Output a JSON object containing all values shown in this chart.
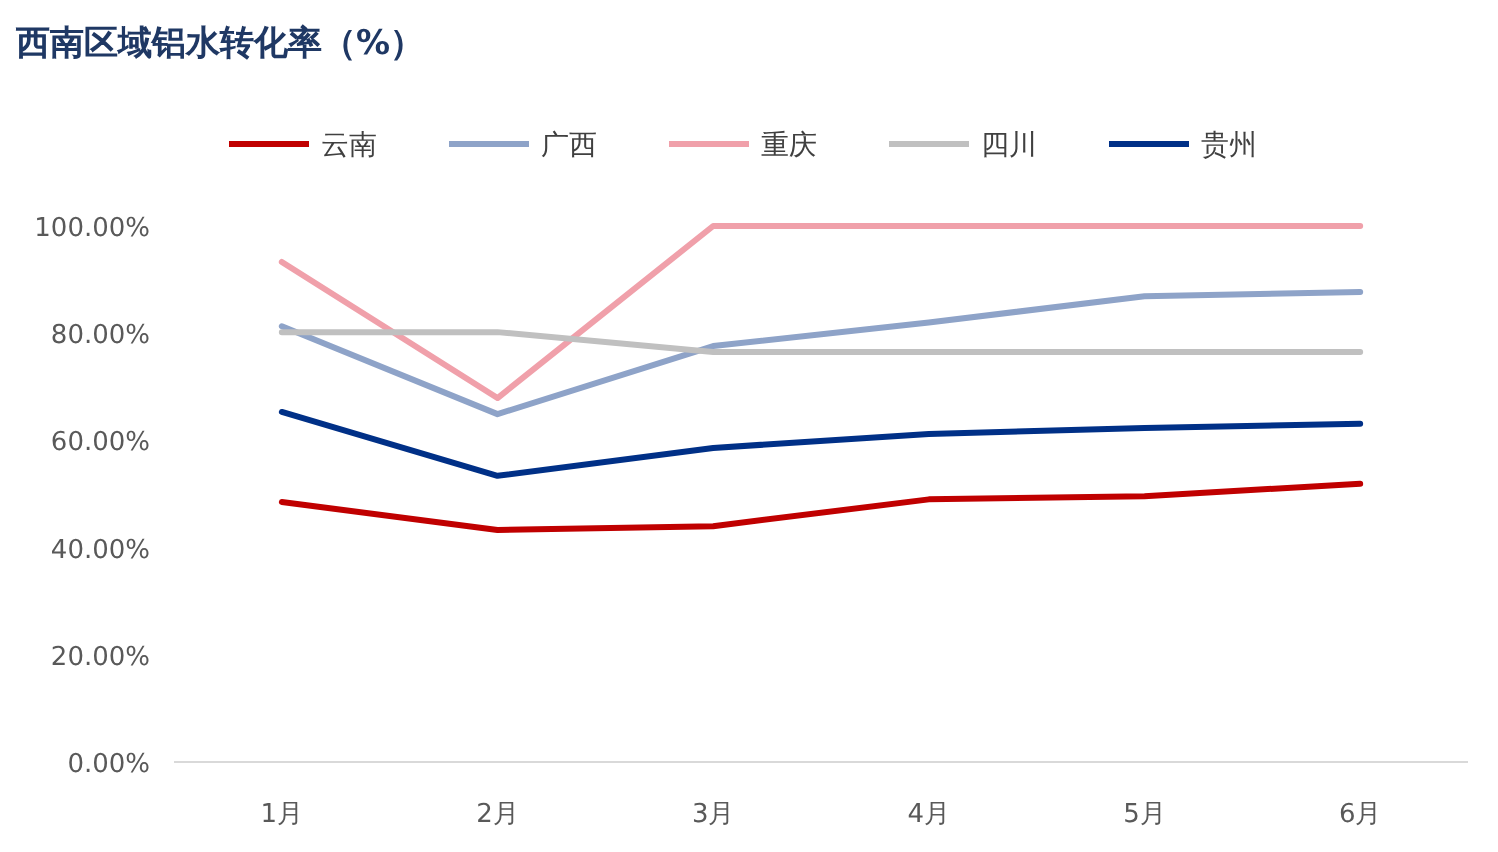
{
  "chart_data": {
    "type": "line",
    "title": "西南区域铝水转化率（%）",
    "categories": [
      "1月",
      "2月",
      "3月",
      "4月",
      "5月",
      "6月"
    ],
    "series": [
      {
        "name": "云南",
        "color": "#c00000",
        "values": [
          48.5,
          43.3,
          44,
          49,
          49.6,
          51.9
        ]
      },
      {
        "name": "广西",
        "color": "#8ea3c8",
        "values": [
          81.3,
          64.9,
          77.6,
          82,
          86.9,
          87.7
        ]
      },
      {
        "name": "重庆",
        "color": "#f0a0aa",
        "values": [
          93.3,
          67.9,
          100,
          100,
          100,
          100
        ]
      },
      {
        "name": "四川",
        "color": "#c0c0c0",
        "values": [
          80.2,
          80.2,
          76.5,
          76.5,
          76.5,
          76.5
        ]
      },
      {
        "name": "贵州",
        "color": "#003087",
        "values": [
          65.3,
          53.4,
          58.6,
          61.2,
          62.3,
          63.1
        ]
      }
    ],
    "ylim": [
      0,
      100
    ],
    "yticks": [
      {
        "value": 0,
        "label": "0.00%"
      },
      {
        "value": 20,
        "label": "20.00%"
      },
      {
        "value": 40,
        "label": "40.00%"
      },
      {
        "value": 60,
        "label": "60.00%"
      },
      {
        "value": 80,
        "label": "80.00%"
      },
      {
        "value": 100,
        "label": "100.00%"
      }
    ],
    "legend": "top",
    "grid": false
  }
}
